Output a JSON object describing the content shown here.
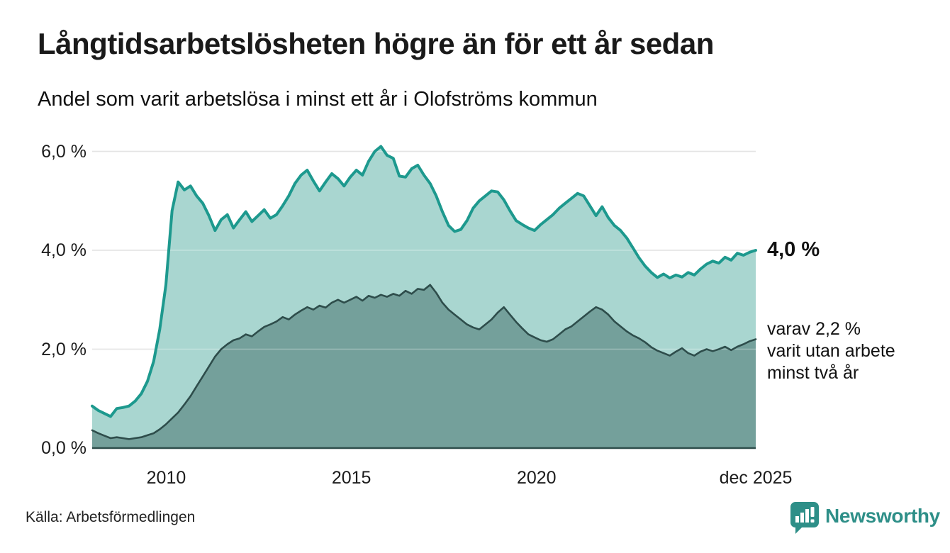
{
  "header": {
    "title": "Långtidsarbetslösheten högre än för ett år sedan",
    "subtitle": "Andel som varit arbetslösa i minst ett år i Olofströms kommun"
  },
  "chart_data": {
    "type": "area",
    "title": "Långtidsarbetslösheten högre än för ett år sedan",
    "subtitle": "Andel som varit arbetslösa i minst ett år i Olofströms kommun",
    "x_start_year": 2008,
    "x_step_months": 2,
    "x_end": "dec 2025",
    "ylim": [
      0,
      6.45
    ],
    "grid": "horizontal",
    "grid_color": "#d9d9d9",
    "y_ticks": [
      {
        "label": "6,0 %",
        "value": 6
      },
      {
        "label": "4,0 %",
        "value": 4
      },
      {
        "label": "2,0 %",
        "value": 2
      },
      {
        "label": "0,0 %",
        "value": 0
      }
    ],
    "x_ticks": [
      {
        "label": "2010",
        "year": 2010
      },
      {
        "label": "2015",
        "year": 2015
      },
      {
        "label": "2020",
        "year": 2020
      },
      {
        "label": "dec 2025",
        "year": 2025.92
      }
    ],
    "series": [
      {
        "name": "arbetslösa minst ett år",
        "color": "#1d998e",
        "fill": "#a9d6d0",
        "end_value": "4,0 %",
        "values": [
          0.85,
          0.76,
          0.7,
          0.64,
          0.8,
          0.82,
          0.85,
          0.95,
          1.1,
          1.35,
          1.75,
          2.4,
          3.3,
          4.8,
          5.38,
          5.22,
          5.3,
          5.1,
          4.95,
          4.7,
          4.4,
          4.62,
          4.72,
          4.45,
          4.62,
          4.78,
          4.58,
          4.7,
          4.82,
          4.65,
          4.72,
          4.9,
          5.1,
          5.35,
          5.52,
          5.62,
          5.4,
          5.2,
          5.38,
          5.55,
          5.45,
          5.3,
          5.48,
          5.62,
          5.52,
          5.8,
          6.0,
          6.1,
          5.92,
          5.86,
          5.5,
          5.48,
          5.65,
          5.72,
          5.52,
          5.35,
          5.1,
          4.78,
          4.5,
          4.38,
          4.42,
          4.6,
          4.85,
          5.0,
          5.1,
          5.2,
          5.18,
          5.02,
          4.8,
          4.6,
          4.52,
          4.45,
          4.4,
          4.52,
          4.62,
          4.72,
          4.85,
          4.95,
          5.05,
          5.15,
          5.1,
          4.9,
          4.7,
          4.88,
          4.66,
          4.5,
          4.4,
          4.25,
          4.05,
          3.85,
          3.68,
          3.55,
          3.45,
          3.52,
          3.44,
          3.5,
          3.46,
          3.55,
          3.5,
          3.62,
          3.72,
          3.78,
          3.74,
          3.86,
          3.8,
          3.94,
          3.9,
          3.96,
          4.0
        ]
      },
      {
        "name": "varav utan arbete minst två år",
        "color": "#2e4d4b",
        "fill": "#74a09b",
        "end_value": "2,2 %",
        "values": [
          0.36,
          0.3,
          0.25,
          0.2,
          0.22,
          0.2,
          0.18,
          0.2,
          0.22,
          0.26,
          0.3,
          0.38,
          0.48,
          0.6,
          0.72,
          0.88,
          1.05,
          1.25,
          1.45,
          1.65,
          1.85,
          2.0,
          2.1,
          2.18,
          2.22,
          2.3,
          2.26,
          2.36,
          2.45,
          2.5,
          2.56,
          2.65,
          2.6,
          2.7,
          2.78,
          2.85,
          2.8,
          2.88,
          2.84,
          2.94,
          3.0,
          2.94,
          3.0,
          3.06,
          2.98,
          3.08,
          3.04,
          3.1,
          3.06,
          3.12,
          3.08,
          3.18,
          3.12,
          3.22,
          3.2,
          3.3,
          3.14,
          2.94,
          2.8,
          2.7,
          2.6,
          2.5,
          2.44,
          2.4,
          2.5,
          2.6,
          2.74,
          2.85,
          2.7,
          2.55,
          2.42,
          2.3,
          2.24,
          2.18,
          2.15,
          2.2,
          2.3,
          2.4,
          2.46,
          2.56,
          2.66,
          2.76,
          2.85,
          2.8,
          2.7,
          2.56,
          2.46,
          2.36,
          2.28,
          2.22,
          2.14,
          2.04,
          1.97,
          1.92,
          1.87,
          1.95,
          2.02,
          1.92,
          1.87,
          1.95,
          2.0,
          1.96,
          2.0,
          2.05,
          1.98,
          2.05,
          2.1,
          2.16,
          2.2
        ]
      }
    ],
    "annotations": {
      "end_value_label": "4,0 %",
      "secondary_label": "varav 2,2 %\nvarit utan arbete\nminst två år"
    }
  },
  "footer": {
    "source": "Källa: Arbetsförmedlingen",
    "logo_text": "Newsworthy",
    "logo_color": "#2e8f88"
  }
}
